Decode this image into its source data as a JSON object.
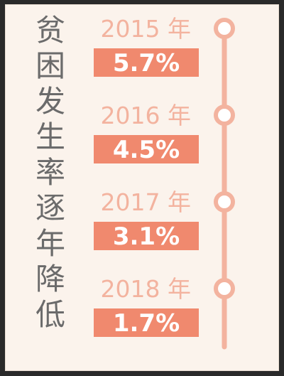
{
  "chart_data": {
    "type": "bar",
    "title": "贫困发生率逐年降低",
    "categories": [
      "2015 年",
      "2016 年",
      "2017 年",
      "2018 年"
    ],
    "values": [
      5.7,
      4.5,
      3.1,
      1.7
    ],
    "value_labels": [
      "5.7%",
      "4.5%",
      "3.1%",
      "1.7%"
    ],
    "unit": "%"
  },
  "colors": {
    "background": "#fbf3ec",
    "bar": "#f0896e",
    "year_text": "#f3b39f",
    "timeline": "#f3b39f",
    "title_text": "#6b6b6b",
    "value_text": "#ffffff"
  }
}
